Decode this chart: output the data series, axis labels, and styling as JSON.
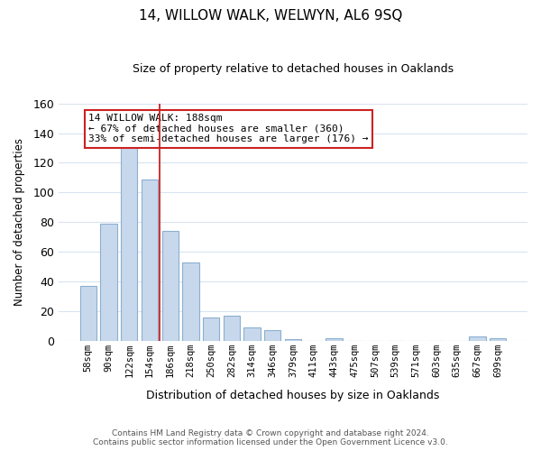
{
  "title": "14, WILLOW WALK, WELWYN, AL6 9SQ",
  "subtitle": "Size of property relative to detached houses in Oaklands",
  "xlabel": "Distribution of detached houses by size in Oaklands",
  "ylabel": "Number of detached properties",
  "bar_color": "#c8d8ec",
  "bar_edge_color": "#8ab0d0",
  "background_color": "#ffffff",
  "grid_color": "#d8e4f0",
  "categories": [
    "58sqm",
    "90sqm",
    "122sqm",
    "154sqm",
    "186sqm",
    "218sqm",
    "250sqm",
    "282sqm",
    "314sqm",
    "346sqm",
    "379sqm",
    "411sqm",
    "443sqm",
    "475sqm",
    "507sqm",
    "539sqm",
    "571sqm",
    "603sqm",
    "635sqm",
    "667sqm",
    "699sqm"
  ],
  "values": [
    37,
    79,
    133,
    109,
    74,
    53,
    16,
    17,
    9,
    7,
    1,
    0,
    2,
    0,
    0,
    0,
    0,
    0,
    0,
    3,
    2
  ],
  "ylim": [
    0,
    160
  ],
  "yticks": [
    0,
    20,
    40,
    60,
    80,
    100,
    120,
    140,
    160
  ],
  "property_label": "14 WILLOW WALK: 188sqm",
  "annotation_line1": "← 67% of detached houses are smaller (360)",
  "annotation_line2": "33% of semi-detached houses are larger (176) →",
  "annotation_box_color": "#ffffff",
  "annotation_border_color": "#cc2222",
  "redline_bar_index": 4,
  "footer_line1": "Contains HM Land Registry data © Crown copyright and database right 2024.",
  "footer_line2": "Contains public sector information licensed under the Open Government Licence v3.0."
}
